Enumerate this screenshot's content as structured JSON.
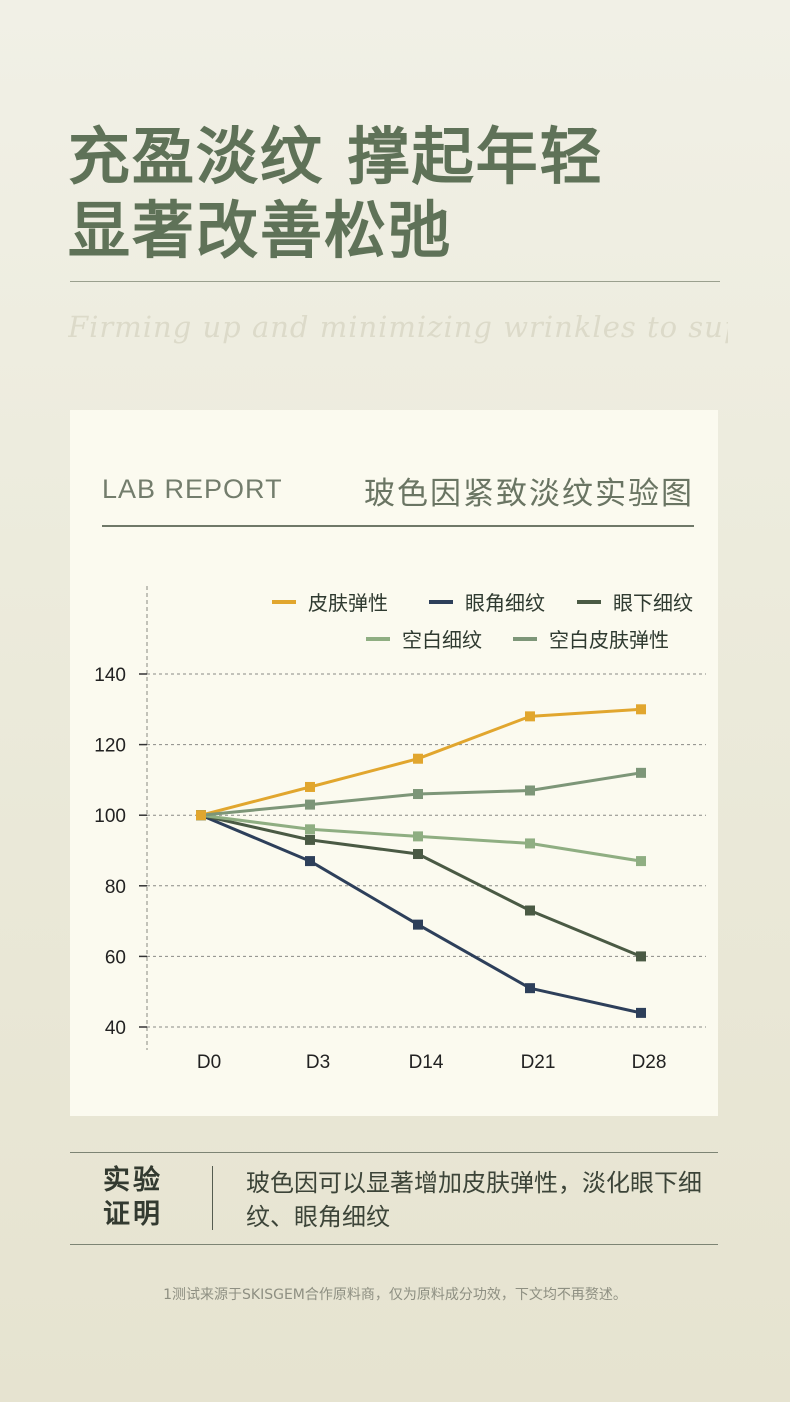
{
  "header": {
    "title_line1": "充盈淡纹 撑起年轻",
    "title_line2": "显著改善松弛",
    "script_text": "Firming up and minimizing wrinkles to support youthfu"
  },
  "card": {
    "lab_label": "LAB REPORT",
    "chart_title": "玻色因紧致淡纹实验图"
  },
  "chart_data": {
    "type": "line",
    "title": "玻色因紧致淡纹实验图",
    "categories": [
      "D0",
      "D3",
      "D14",
      "D21",
      "D28"
    ],
    "ylim": [
      40,
      140
    ],
    "yticks": [
      "140",
      "120",
      "100",
      "80",
      "60",
      "40"
    ],
    "ytick_values": [
      140,
      120,
      100,
      80,
      60,
      40
    ],
    "grid": "horizontal-dashed",
    "legend_position": "top",
    "series": [
      {
        "name": "皮肤弹性",
        "color": "#e1a62e",
        "values": [
          100,
          108,
          116,
          128,
          130
        ]
      },
      {
        "name": "眼角细纹",
        "color": "#2d3f5a",
        "values": [
          100,
          87,
          69,
          51,
          44
        ]
      },
      {
        "name": "眼下细纹",
        "color": "#4a5a44",
        "values": [
          100,
          93,
          89,
          73,
          60
        ]
      },
      {
        "name": "空白细纹",
        "color": "#8fae82",
        "values": [
          100,
          96,
          94,
          92,
          87
        ]
      },
      {
        "name": "空白皮肤弹性",
        "color": "#7d9678",
        "values": [
          100,
          103,
          106,
          107,
          112
        ]
      }
    ]
  },
  "conclusion": {
    "heading_line1": "实验",
    "heading_line2": "证明",
    "text": "玻色因可以显著增加皮肤弹性，淡化眼下细纹、眼角细纹"
  },
  "footnote": "1测试来源于SKISGEM合作原料商，仅为原料成分功效，下文均不再赘述。"
}
